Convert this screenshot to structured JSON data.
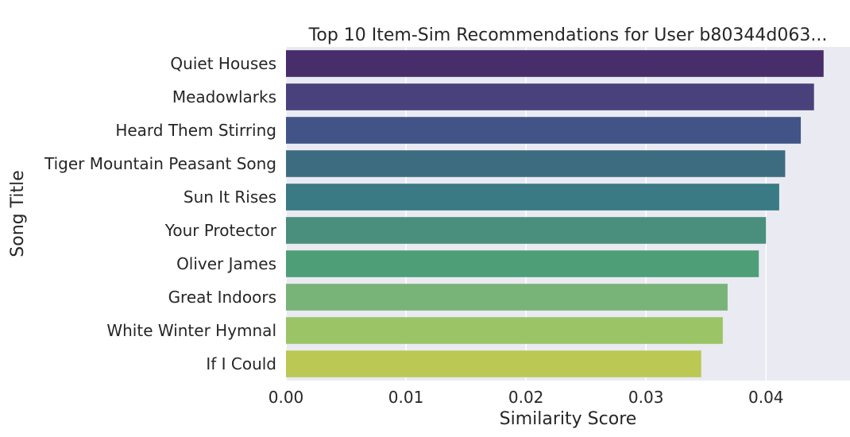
{
  "chart_data": {
    "type": "bar",
    "orientation": "horizontal",
    "title": "Top 10 Item-Sim Recommendations for User b80344d063...",
    "xlabel": "Similarity Score",
    "ylabel": "Song Title",
    "categories": [
      "Quiet Houses",
      "Meadowlarks",
      "Heard Them Stirring",
      "Tiger Mountain Peasant Song",
      "Sun It Rises",
      "Your Protector",
      "Oliver James",
      "Great Indoors",
      "White Winter Hymnal",
      "If I Could"
    ],
    "values": [
      0.0448,
      0.044,
      0.0429,
      0.0416,
      0.0411,
      0.04,
      0.0394,
      0.0368,
      0.0364,
      0.0346
    ],
    "colors": [
      "#472d69",
      "#48417c",
      "#425487",
      "#3d6c80",
      "#3a7a85",
      "#4a8f7e",
      "#4e9f78",
      "#78b477",
      "#9bc466",
      "#bbc854"
    ],
    "xlim": [
      0,
      0.047
    ],
    "xticks": [
      0.0,
      0.01,
      0.02,
      0.03,
      0.04
    ],
    "xtick_labels": [
      "0.00",
      "0.01",
      "0.02",
      "0.03",
      "0.04"
    ],
    "grid": true,
    "background": "#eaeaf2",
    "grid_color": "#ffffff"
  }
}
